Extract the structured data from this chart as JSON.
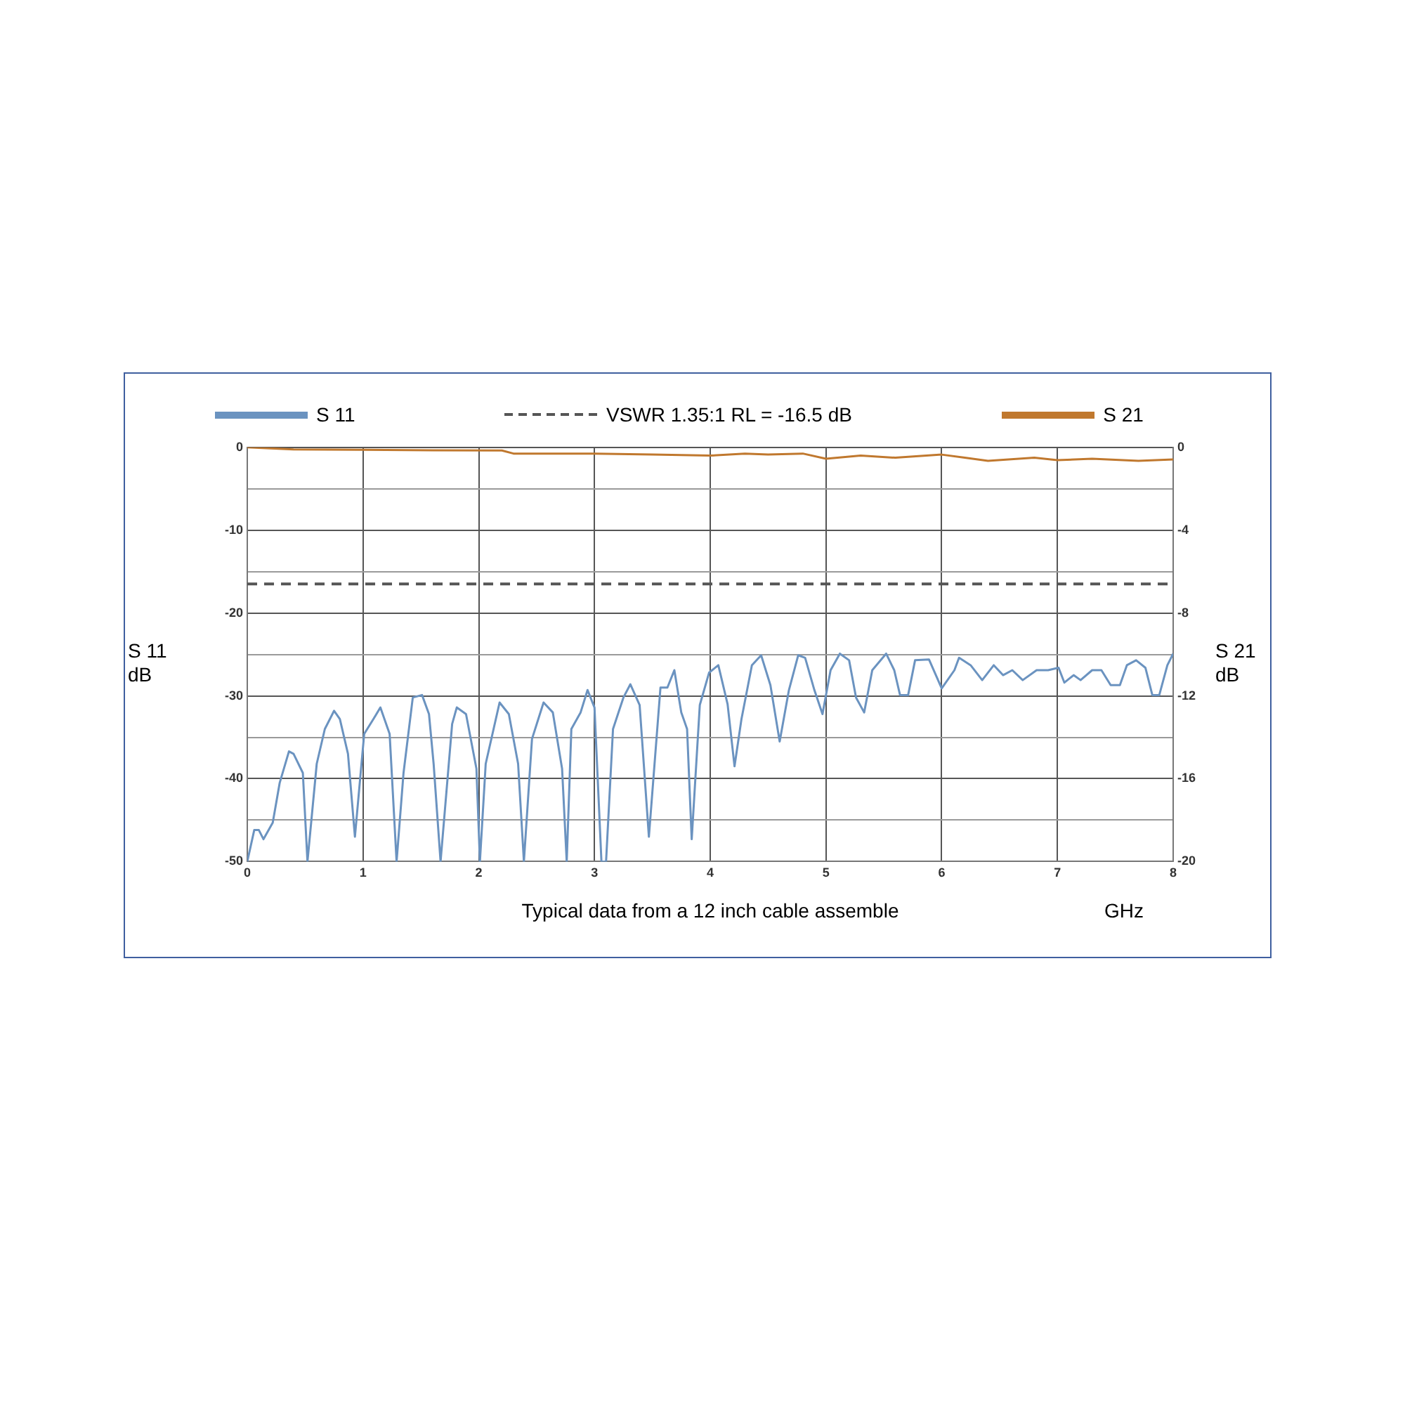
{
  "chart_data": {
    "type": "line",
    "xlabel": "GHz",
    "ylabel": "S 11 dB",
    "y2label": "S 21 dB",
    "annotations": [
      "Typical data from a 12 inch cable assemble"
    ],
    "xlim": [
      0,
      8
    ],
    "xticks": [
      0,
      1,
      2,
      3,
      4,
      5,
      6,
      7,
      8
    ],
    "ylim": [
      -50,
      0
    ],
    "yticks": [
      -50,
      {
        "value": -45,
        "label": null
      },
      -40,
      {
        "value": -35,
        "label": null
      },
      -30,
      {
        "value": -25,
        "label": null
      },
      -20,
      {
        "value": -15,
        "label": null
      },
      -10,
      {
        "value": -5,
        "label": null
      },
      0
    ],
    "y2lim": [
      -20,
      0
    ],
    "y2ticks": [
      -20,
      -16,
      -12,
      -8,
      -4,
      0
    ],
    "grid": true,
    "legend": "top",
    "line_style": "solid",
    "marker": "none",
    "ref_lines": [
      {
        "axis": "y",
        "value": -16.5,
        "label": "VSWR 1.35:1 RL = -16.5 dB",
        "color": "#555555",
        "line_style": "dashed"
      }
    ],
    "series": [
      {
        "name": "S 11",
        "color": "#6b93c0",
        "x": [
          0,
          0.06,
          0.1,
          0.14,
          0.22,
          0.28,
          0.36,
          0.4,
          0.48,
          0.52,
          0.6,
          0.67,
          0.75,
          0.8,
          0.87,
          0.93,
          1.01,
          1.09,
          1.15,
          1.23,
          1.29,
          1.35,
          1.43,
          1.51,
          1.57,
          1.61,
          1.67,
          1.77,
          1.81,
          1.89,
          1.98,
          2.01,
          2.06,
          2.18,
          2.26,
          2.34,
          2.39,
          2.46,
          2.56,
          2.64,
          2.72,
          2.76,
          2.8,
          2.88,
          2.94,
          3.0,
          3.06,
          3.1,
          3.16,
          3.25,
          3.31,
          3.39,
          3.47,
          3.57,
          3.63,
          3.69,
          3.75,
          3.8,
          3.84,
          3.91,
          3.99,
          4.07,
          4.15,
          4.21,
          4.27,
          4.36,
          4.44,
          4.52,
          4.6,
          4.68,
          4.76,
          4.82,
          4.9,
          4.97,
          5.04,
          5.12,
          5.2,
          5.26,
          5.33,
          5.4,
          5.52,
          5.59,
          5.64,
          5.71,
          5.77,
          5.89,
          6.0,
          6.11,
          6.15,
          6.25,
          6.35,
          6.45,
          6.53,
          6.61,
          6.7,
          6.82,
          6.92,
          7.01,
          7.06,
          7.14,
          7.2,
          7.3,
          7.38,
          7.46,
          7.54,
          7.6,
          7.68,
          7.76,
          7.82,
          7.88,
          7.95,
          8.0
        ],
        "values": [
          -50,
          -46.2,
          -46.2,
          -47.3,
          -45.3,
          -40.5,
          -36.7,
          -37,
          -39.3,
          -50,
          -38.2,
          -34,
          -31.8,
          -32.8,
          -37,
          -47,
          -34.6,
          -32.8,
          -31.4,
          -34.6,
          -50,
          -39.3,
          -30.2,
          -29.9,
          -32.2,
          -38.2,
          -50,
          -33.4,
          -31.4,
          -32.2,
          -38.8,
          -50,
          -38.2,
          -30.8,
          -32.2,
          -38.2,
          -50,
          -35.2,
          -30.8,
          -32,
          -38.8,
          -50,
          -34,
          -32,
          -29.3,
          -31.4,
          -50,
          -50,
          -34,
          -30.2,
          -28.6,
          -31.1,
          -47,
          -29,
          -29,
          -26.9,
          -32,
          -34,
          -47.3,
          -31.1,
          -27.2,
          -26.3,
          -31,
          -38.5,
          -32.8,
          -26.3,
          -25.1,
          -28.7,
          -35.5,
          -29.3,
          -25.1,
          -25.4,
          -29.3,
          -32.2,
          -26.9,
          -24.9,
          -25.7,
          -30.2,
          -32,
          -26.9,
          -24.9,
          -26.9,
          -29.9,
          -29.9,
          -25.7,
          -25.6,
          -29.1,
          -26.9,
          -25.4,
          -26.3,
          -28.1,
          -26.3,
          -27.5,
          -26.9,
          -28.1,
          -26.9,
          -26.9,
          -26.6,
          -28.4,
          -27.5,
          -28.1,
          -26.9,
          -26.9,
          -28.7,
          -28.7,
          -26.3,
          -25.7,
          -26.6,
          -29.9,
          -29.9,
          -26.3,
          -24.9
        ]
      },
      {
        "name": "S 21",
        "color": "#c0782e",
        "axis": "y2",
        "x": [
          0,
          0.4,
          1,
          1.6,
          2.2,
          2.3,
          3,
          3.5,
          4,
          4.3,
          4.5,
          4.8,
          5,
          5.3,
          5.6,
          6,
          6.2,
          6.4,
          6.8,
          7,
          7.3,
          7.7,
          8
        ],
        "values": [
          0,
          -0.1,
          -0.12,
          -0.14,
          -0.15,
          -0.3,
          -0.3,
          -0.35,
          -0.4,
          -0.3,
          -0.35,
          -0.3,
          -0.55,
          -0.4,
          -0.5,
          -0.35,
          -0.5,
          -0.65,
          -0.5,
          -0.62,
          -0.55,
          -0.65,
          -0.58
        ]
      }
    ]
  }
}
